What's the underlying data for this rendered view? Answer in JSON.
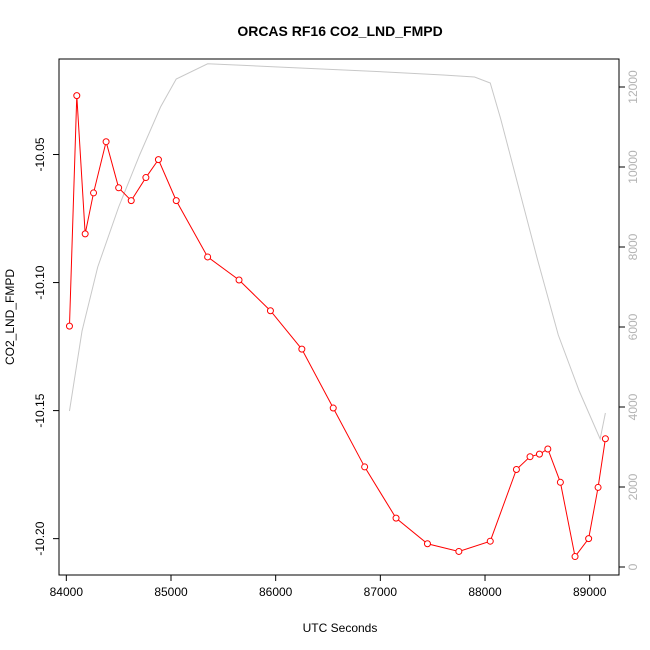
{
  "chart_data": {
    "type": "line",
    "title": "ORCAS RF16 CO2_LND_FMPD",
    "xlabel": "UTC Seconds",
    "ylabel": "CO2_LND_FMPD",
    "xlim": [
      83930,
      89280
    ],
    "ylim": [
      -10.2142,
      -10.0127
    ],
    "y2lim": [
      -200,
      12700
    ],
    "grid": false,
    "x_ticks": [
      84000,
      85000,
      86000,
      87000,
      88000,
      89000
    ],
    "y_ticks": [
      -10.05,
      -10.1,
      -10.15,
      -10.2
    ],
    "y_tick_labels": [
      "-10.05",
      "-10.10",
      "-10.15",
      "-10.20"
    ],
    "y2_ticks": [
      0,
      2000,
      4000,
      6000,
      8000,
      10000,
      12000
    ],
    "series": [
      {
        "axis": "left",
        "color": "#ff0000",
        "marker": "open-circle",
        "x": [
          84030,
          84100,
          84180,
          84260,
          84380,
          84500,
          84620,
          84760,
          84880,
          85050,
          85350,
          85650,
          85950,
          86250,
          86550,
          86850,
          87150,
          87450,
          87750,
          88050,
          88300,
          88430,
          88520,
          88600,
          88720,
          88860,
          88990,
          89080,
          89150
        ],
        "values": [
          -10.117,
          -10.027,
          -10.081,
          -10.065,
          -10.045,
          -10.063,
          -10.068,
          -10.059,
          -10.052,
          -10.068,
          -10.09,
          -10.099,
          -10.111,
          -10.126,
          -10.149,
          -10.172,
          -10.192,
          -10.202,
          -10.205,
          -10.201,
          -10.173,
          -10.168,
          -10.167,
          -10.165,
          -10.178,
          -10.207,
          -10.2,
          -10.18,
          -10.161
        ]
      },
      {
        "axis": "right",
        "color": "#c8c8c8",
        "marker": "none",
        "x": [
          84030,
          84150,
          84300,
          84500,
          84700,
          84900,
          85050,
          85350,
          85700,
          86100,
          86600,
          87100,
          87600,
          87900,
          88050,
          88150,
          88300,
          88500,
          88700,
          88900,
          89100,
          89150
        ],
        "values": [
          3900,
          5900,
          7500,
          9000,
          10300,
          11500,
          12200,
          12580,
          12540,
          12490,
          12430,
          12370,
          12300,
          12250,
          12100,
          11200,
          9700,
          7700,
          5800,
          4400,
          3200,
          3850
        ]
      }
    ]
  }
}
